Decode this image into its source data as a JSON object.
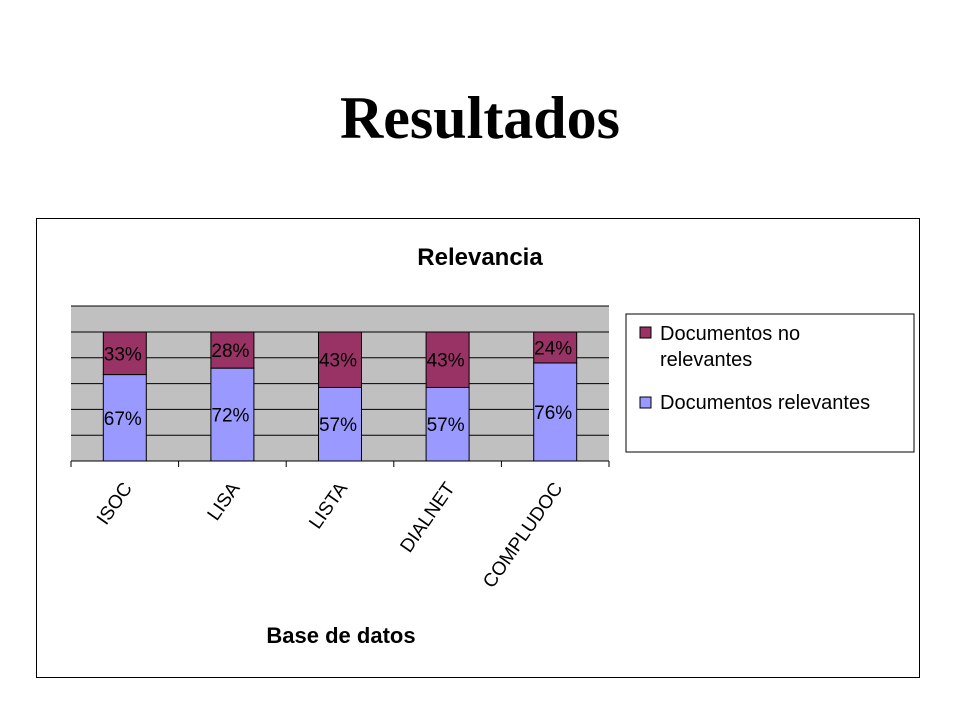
{
  "slide": {
    "title": "Resultados"
  },
  "chart_data": {
    "type": "bar",
    "stacked": true,
    "title": "Relevancia",
    "xlabel": "Base de datos",
    "ylabel": "",
    "ylim": [
      0,
      100
    ],
    "grid": true,
    "legend_position": "right",
    "categories": [
      "ISOC",
      "LISA",
      "LISTA",
      "DIALNET",
      "COMPLUDOC"
    ],
    "series": [
      {
        "name": "Documentos relevantes",
        "color": "#9999ff",
        "values": [
          67,
          72,
          57,
          57,
          76
        ],
        "labels": [
          "67%",
          "72%",
          "57%",
          "57%",
          "76%"
        ]
      },
      {
        "name": "Documentos no relevantes",
        "color": "#993366",
        "values": [
          33,
          28,
          43,
          43,
          24
        ],
        "labels": [
          "33%",
          "28%",
          "43%",
          "43%",
          "24%"
        ]
      }
    ],
    "legend": {
      "items": [
        {
          "line1": "Documentos no",
          "line2": "relevantes",
          "color": "#993366"
        },
        {
          "line1": "Documentos relevantes",
          "line2": "",
          "color": "#9999ff"
        }
      ]
    },
    "plot_background": "#c0c0c0"
  }
}
